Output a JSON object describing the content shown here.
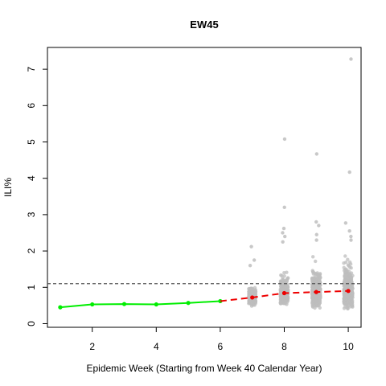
{
  "chart_data": {
    "type": "scatter",
    "title": "EW45",
    "xlabel": "Epidemic Week (Starting from Week 40 Calendar Year)",
    "ylabel": "ILI%",
    "xlim": [
      0.6,
      10.4
    ],
    "ylim": [
      -0.1,
      7.6
    ],
    "x_ticks": [
      2,
      4,
      6,
      8,
      10
    ],
    "y_ticks": [
      0,
      1,
      2,
      3,
      4,
      5,
      6,
      7
    ],
    "grid": false,
    "legend": "none",
    "reference_line": {
      "y": 1.1,
      "style": "dashed",
      "color": "#555555"
    },
    "series": [
      {
        "kind": "observed",
        "color": "#00ee00",
        "style": "solid",
        "x": [
          1,
          2,
          3,
          4,
          5,
          6
        ],
        "y": [
          0.45,
          0.53,
          0.54,
          0.53,
          0.57,
          0.62
        ]
      },
      {
        "kind": "forecast-median",
        "color": "#ee0000",
        "style": "dashed",
        "x": [
          6,
          7,
          8,
          9,
          10
        ],
        "y": [
          0.62,
          0.72,
          0.84,
          0.87,
          0.9
        ]
      },
      {
        "kind": "forecast-simulations",
        "color": "#bebebe",
        "x_weeks": [
          7,
          8,
          9,
          10
        ],
        "outliers": [
          {
            "x": 7,
            "y": 2.12
          },
          {
            "x": 7,
            "y": 1.75
          },
          {
            "x": 7,
            "y": 1.6
          },
          {
            "x": 8,
            "y": 5.08
          },
          {
            "x": 8,
            "y": 3.2
          },
          {
            "x": 8,
            "y": 2.62
          },
          {
            "x": 8,
            "y": 2.5
          },
          {
            "x": 8,
            "y": 2.4
          },
          {
            "x": 8,
            "y": 2.25
          },
          {
            "x": 9,
            "y": 4.67
          },
          {
            "x": 9,
            "y": 2.8
          },
          {
            "x": 9,
            "y": 2.7
          },
          {
            "x": 9,
            "y": 2.45
          },
          {
            "x": 9,
            "y": 2.3
          },
          {
            "x": 10,
            "y": 7.28
          },
          {
            "x": 10,
            "y": 4.17
          },
          {
            "x": 10,
            "y": 2.77
          },
          {
            "x": 10,
            "y": 2.55
          },
          {
            "x": 10,
            "y": 2.4
          },
          {
            "x": 10,
            "y": 2.3
          }
        ]
      }
    ]
  }
}
